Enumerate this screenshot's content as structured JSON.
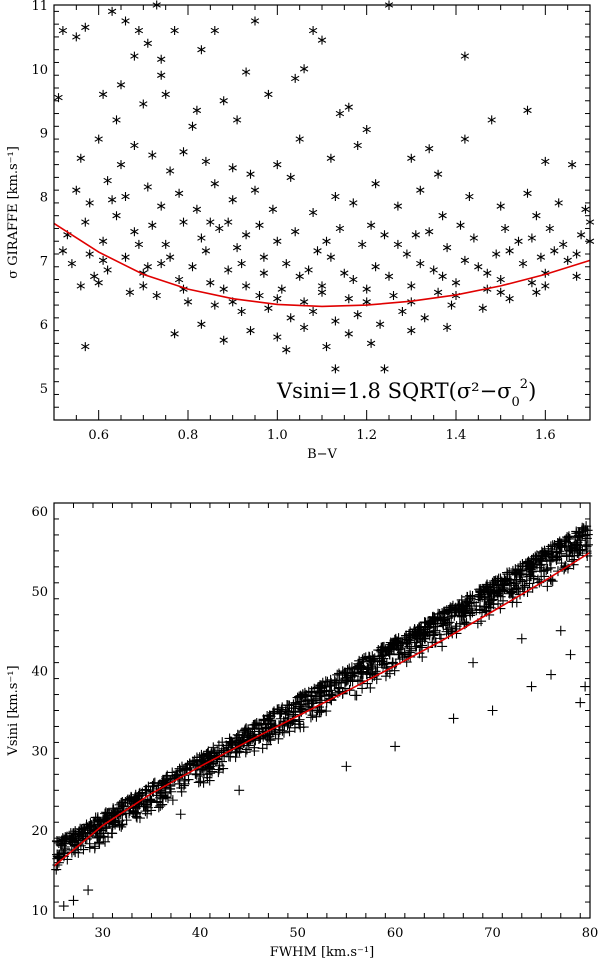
{
  "chart_data": [
    {
      "type": "scatter",
      "title": "",
      "xlabel": "B−V",
      "ylabel": "σ GIRAFFE [km.s⁻¹]",
      "xlim": [
        0.5,
        1.7
      ],
      "ylim": [
        4.5,
        11
      ],
      "xticks": [
        0.6,
        0.8,
        1.0,
        1.2,
        1.4,
        1.6
      ],
      "xtick_labels": [
        "0.6",
        "0.8",
        "1.0",
        "1.2",
        "1.4",
        "1.6"
      ],
      "yticks": [
        5,
        6,
        7,
        8,
        9,
        10,
        11
      ],
      "ytick_labels": [
        "5",
        "6",
        "7",
        "8",
        "9",
        "10",
        "11"
      ],
      "marker": "asterisk",
      "grid": false,
      "annotation": {
        "text_main": "Vsini=1.8 SQRT(σ²−σ",
        "text_sub": "0",
        "text_sup": "2",
        "text_end": ")"
      },
      "fit_curve": {
        "color": "#e00000",
        "x": [
          0.5,
          0.6,
          0.7,
          0.8,
          0.9,
          1.0,
          1.1,
          1.2,
          1.3,
          1.4,
          1.5,
          1.6,
          1.7
        ],
        "y": [
          7.58,
          7.13,
          6.78,
          6.55,
          6.4,
          6.31,
          6.28,
          6.3,
          6.36,
          6.46,
          6.6,
          6.78,
          7.0
        ]
      },
      "points": [
        [
          0.52,
          10.6
        ],
        [
          0.55,
          10.5
        ],
        [
          0.57,
          10.65
        ],
        [
          0.63,
          10.9
        ],
        [
          0.66,
          10.75
        ],
        [
          0.69,
          10.6
        ],
        [
          0.71,
          10.4
        ],
        [
          0.73,
          11.0
        ],
        [
          0.77,
          10.6
        ],
        [
          0.83,
          10.3
        ],
        [
          0.86,
          10.6
        ],
        [
          0.95,
          10.75
        ],
        [
          1.08,
          10.6
        ],
        [
          1.1,
          10.45
        ],
        [
          1.25,
          11.0
        ],
        [
          0.51,
          9.55
        ],
        [
          0.61,
          9.6
        ],
        [
          0.64,
          9.2
        ],
        [
          0.7,
          9.45
        ],
        [
          0.75,
          9.6
        ],
        [
          0.82,
          9.35
        ],
        [
          0.88,
          9.5
        ],
        [
          0.91,
          9.2
        ],
        [
          0.98,
          9.6
        ],
        [
          1.04,
          9.85
        ],
        [
          1.06,
          10.0
        ],
        [
          1.14,
          9.3
        ],
        [
          1.42,
          10.2
        ],
        [
          1.56,
          9.35
        ],
        [
          0.56,
          8.6
        ],
        [
          0.6,
          8.9
        ],
        [
          0.65,
          8.5
        ],
        [
          0.68,
          8.8
        ],
        [
          0.72,
          8.65
        ],
        [
          0.76,
          8.4
        ],
        [
          0.79,
          8.7
        ],
        [
          0.84,
          8.55
        ],
        [
          0.9,
          8.45
        ],
        [
          0.94,
          8.35
        ],
        [
          1.0,
          8.5
        ],
        [
          1.05,
          8.9
        ],
        [
          1.12,
          8.6
        ],
        [
          1.18,
          8.8
        ],
        [
          1.3,
          8.6
        ],
        [
          1.42,
          8.9
        ],
        [
          1.48,
          9.2
        ],
        [
          1.6,
          8.55
        ],
        [
          1.66,
          8.5
        ],
        [
          0.55,
          8.1
        ],
        [
          0.58,
          7.9
        ],
        [
          0.62,
          8.25
        ],
        [
          0.66,
          8.0
        ],
        [
          0.71,
          8.15
        ],
        [
          0.74,
          7.85
        ],
        [
          0.78,
          8.05
        ],
        [
          0.82,
          7.8
        ],
        [
          0.86,
          8.2
        ],
        [
          0.9,
          7.95
        ],
        [
          0.95,
          8.1
        ],
        [
          0.99,
          7.8
        ],
        [
          1.03,
          8.3
        ],
        [
          1.08,
          7.75
        ],
        [
          1.13,
          8.0
        ],
        [
          1.17,
          7.9
        ],
        [
          1.22,
          8.2
        ],
        [
          1.27,
          7.85
        ],
        [
          1.32,
          8.1
        ],
        [
          1.37,
          7.7
        ],
        [
          1.43,
          8.0
        ],
        [
          1.5,
          7.85
        ],
        [
          1.56,
          8.05
        ],
        [
          1.63,
          7.9
        ],
        [
          1.69,
          7.8
        ],
        [
          0.53,
          7.4
        ],
        [
          0.57,
          7.6
        ],
        [
          0.61,
          7.3
        ],
        [
          0.64,
          7.7
        ],
        [
          0.68,
          7.45
        ],
        [
          0.72,
          7.55
        ],
        [
          0.75,
          7.25
        ],
        [
          0.79,
          7.6
        ],
        [
          0.83,
          7.35
        ],
        [
          0.87,
          7.5
        ],
        [
          0.91,
          7.2
        ],
        [
          0.96,
          7.55
        ],
        [
          1.0,
          7.3
        ],
        [
          1.04,
          7.45
        ],
        [
          1.09,
          7.15
        ],
        [
          1.14,
          7.5
        ],
        [
          1.19,
          7.25
        ],
        [
          1.24,
          7.4
        ],
        [
          1.29,
          7.1
        ],
        [
          1.34,
          7.45
        ],
        [
          1.38,
          7.2
        ],
        [
          1.44,
          7.35
        ],
        [
          1.49,
          7.1
        ],
        [
          1.54,
          7.3
        ],
        [
          1.59,
          7.05
        ],
        [
          1.64,
          7.25
        ],
        [
          1.68,
          7.4
        ],
        [
          0.54,
          6.95
        ],
        [
          0.58,
          7.1
        ],
        [
          0.62,
          6.85
        ],
        [
          0.66,
          7.05
        ],
        [
          0.7,
          6.8
        ],
        [
          0.74,
          6.95
        ],
        [
          0.78,
          6.7
        ],
        [
          0.81,
          6.9
        ],
        [
          0.85,
          6.65
        ],
        [
          0.89,
          6.85
        ],
        [
          0.93,
          6.6
        ],
        [
          0.97,
          6.8
        ],
        [
          1.01,
          6.55
        ],
        [
          1.05,
          6.75
        ],
        [
          1.1,
          6.6
        ],
        [
          1.15,
          6.8
        ],
        [
          1.2,
          6.55
        ],
        [
          1.25,
          6.75
        ],
        [
          1.3,
          6.6
        ],
        [
          1.35,
          6.85
        ],
        [
          1.4,
          6.65
        ],
        [
          1.45,
          6.9
        ],
        [
          1.5,
          6.7
        ],
        [
          1.55,
          6.95
        ],
        [
          1.6,
          6.8
        ],
        [
          1.65,
          7.0
        ],
        [
          0.6,
          6.65
        ],
        [
          0.67,
          6.5
        ],
        [
          0.73,
          6.45
        ],
        [
          0.8,
          6.35
        ],
        [
          0.86,
          6.3
        ],
        [
          0.92,
          6.2
        ],
        [
          0.98,
          6.25
        ],
        [
          1.03,
          6.1
        ],
        [
          1.08,
          6.2
        ],
        [
          1.13,
          6.05
        ],
        [
          1.18,
          6.15
        ],
        [
          1.23,
          6.0
        ],
        [
          1.28,
          6.2
        ],
        [
          1.33,
          6.1
        ],
        [
          1.39,
          6.3
        ],
        [
          1.46,
          6.25
        ],
        [
          1.52,
          6.4
        ],
        [
          1.58,
          6.5
        ],
        [
          0.77,
          5.85
        ],
        [
          0.83,
          6.0
        ],
        [
          0.88,
          5.75
        ],
        [
          0.94,
          5.9
        ],
        [
          1.0,
          5.8
        ],
        [
          1.06,
          5.95
        ],
        [
          1.11,
          5.65
        ],
        [
          1.16,
          5.85
        ],
        [
          1.21,
          5.7
        ],
        [
          1.3,
          5.9
        ],
        [
          1.38,
          5.95
        ],
        [
          0.57,
          5.65
        ],
        [
          1.13,
          5.3
        ],
        [
          1.24,
          5.3
        ],
        [
          1.02,
          5.6
        ],
        [
          0.63,
          7.95
        ],
        [
          0.69,
          7.25
        ],
        [
          0.76,
          7.05
        ],
        [
          0.84,
          7.15
        ],
        [
          0.92,
          6.95
        ],
        [
          1.02,
          6.95
        ],
        [
          1.12,
          7.05
        ],
        [
          1.22,
          6.9
        ],
        [
          1.32,
          6.95
        ],
        [
          1.42,
          7.0
        ],
        [
          1.52,
          7.15
        ],
        [
          1.62,
          7.15
        ],
        [
          0.71,
          6.9
        ],
        [
          0.79,
          6.55
        ],
        [
          0.88,
          6.55
        ],
        [
          0.96,
          6.45
        ],
        [
          1.06,
          6.35
        ],
        [
          1.16,
          6.4
        ],
        [
          1.26,
          6.45
        ],
        [
          1.36,
          6.5
        ],
        [
          1.47,
          6.55
        ],
        [
          1.57,
          6.65
        ],
        [
          1.67,
          6.75
        ],
        [
          0.65,
          9.75
        ],
        [
          0.74,
          9.9
        ],
        [
          0.81,
          9.1
        ],
        [
          1.2,
          9.05
        ],
        [
          1.34,
          8.75
        ],
        [
          1.58,
          7.7
        ],
        [
          1.7,
          7.6
        ],
        [
          0.93,
          9.95
        ],
        [
          0.68,
          10.2
        ],
        [
          0.74,
          10.15
        ],
        [
          1.16,
          9.4
        ],
        [
          1.36,
          8.35
        ],
        [
          0.89,
          7.6
        ],
        [
          0.97,
          7.05
        ],
        [
          1.07,
          6.85
        ],
        [
          1.17,
          6.7
        ],
        [
          1.27,
          7.25
        ],
        [
          1.37,
          6.75
        ],
        [
          1.47,
          6.8
        ],
        [
          1.57,
          7.35
        ],
        [
          1.67,
          7.1
        ],
        [
          0.52,
          7.15
        ],
        [
          0.59,
          6.75
        ],
        [
          0.56,
          6.6
        ],
        [
          0.61,
          7.0
        ],
        [
          0.85,
          7.6
        ],
        [
          0.93,
          7.4
        ],
        [
          1.11,
          7.3
        ],
        [
          1.21,
          7.55
        ],
        [
          1.31,
          7.4
        ],
        [
          1.41,
          7.55
        ],
        [
          1.51,
          7.5
        ],
        [
          1.61,
          7.5
        ],
        [
          0.7,
          6.6
        ],
        [
          0.9,
          6.35
        ],
        [
          1.0,
          6.4
        ],
        [
          1.1,
          6.5
        ],
        [
          1.2,
          6.35
        ],
        [
          1.3,
          6.35
        ],
        [
          1.4,
          6.45
        ],
        [
          1.5,
          6.5
        ],
        [
          1.6,
          6.6
        ],
        [
          1.7,
          7.3
        ]
      ]
    },
    {
      "type": "scatter",
      "title": "",
      "xlabel": "FWHM [km.s⁻¹]",
      "ylabel": "Vsini [km.s⁻¹]",
      "xlim": [
        25,
        80
      ],
      "ylim": [
        9,
        61
      ],
      "xticks": [
        30,
        40,
        50,
        60,
        70,
        80
      ],
      "xtick_labels": [
        "30",
        "40",
        "50",
        "60",
        "70",
        "80"
      ],
      "yticks": [
        10,
        20,
        30,
        40,
        50,
        60
      ],
      "ytick_labels": [
        "10",
        "20",
        "30",
        "40",
        "50",
        "60"
      ],
      "marker": "plus",
      "grid": false,
      "fit_curve": {
        "color": "#e00000",
        "x": [
          25,
          30,
          35,
          40,
          45,
          50,
          55,
          60,
          65,
          70,
          75,
          80
        ],
        "y": [
          15.5,
          20.6,
          24.6,
          28.0,
          31.2,
          34.3,
          37.4,
          40.6,
          43.9,
          47.4,
          51.0,
          54.8
        ]
      },
      "band": {
        "x0": 25,
        "x1": 80,
        "upper": [
          18.5,
          58.5
        ],
        "lower": [
          12.5,
          51.0
        ]
      },
      "outliers": [
        [
          26,
          10.5
        ],
        [
          27,
          11.2
        ],
        [
          28.5,
          12.5
        ],
        [
          38,
          22
        ],
        [
          44,
          25
        ],
        [
          55,
          28
        ],
        [
          60,
          30.5
        ],
        [
          66,
          34
        ],
        [
          70,
          35
        ],
        [
          74,
          38
        ],
        [
          76,
          39.5
        ],
        [
          79,
          36
        ],
        [
          79.5,
          38
        ],
        [
          78,
          42
        ],
        [
          77,
          45
        ],
        [
          80,
          46
        ],
        [
          73,
          44
        ],
        [
          68,
          41
        ]
      ]
    }
  ]
}
